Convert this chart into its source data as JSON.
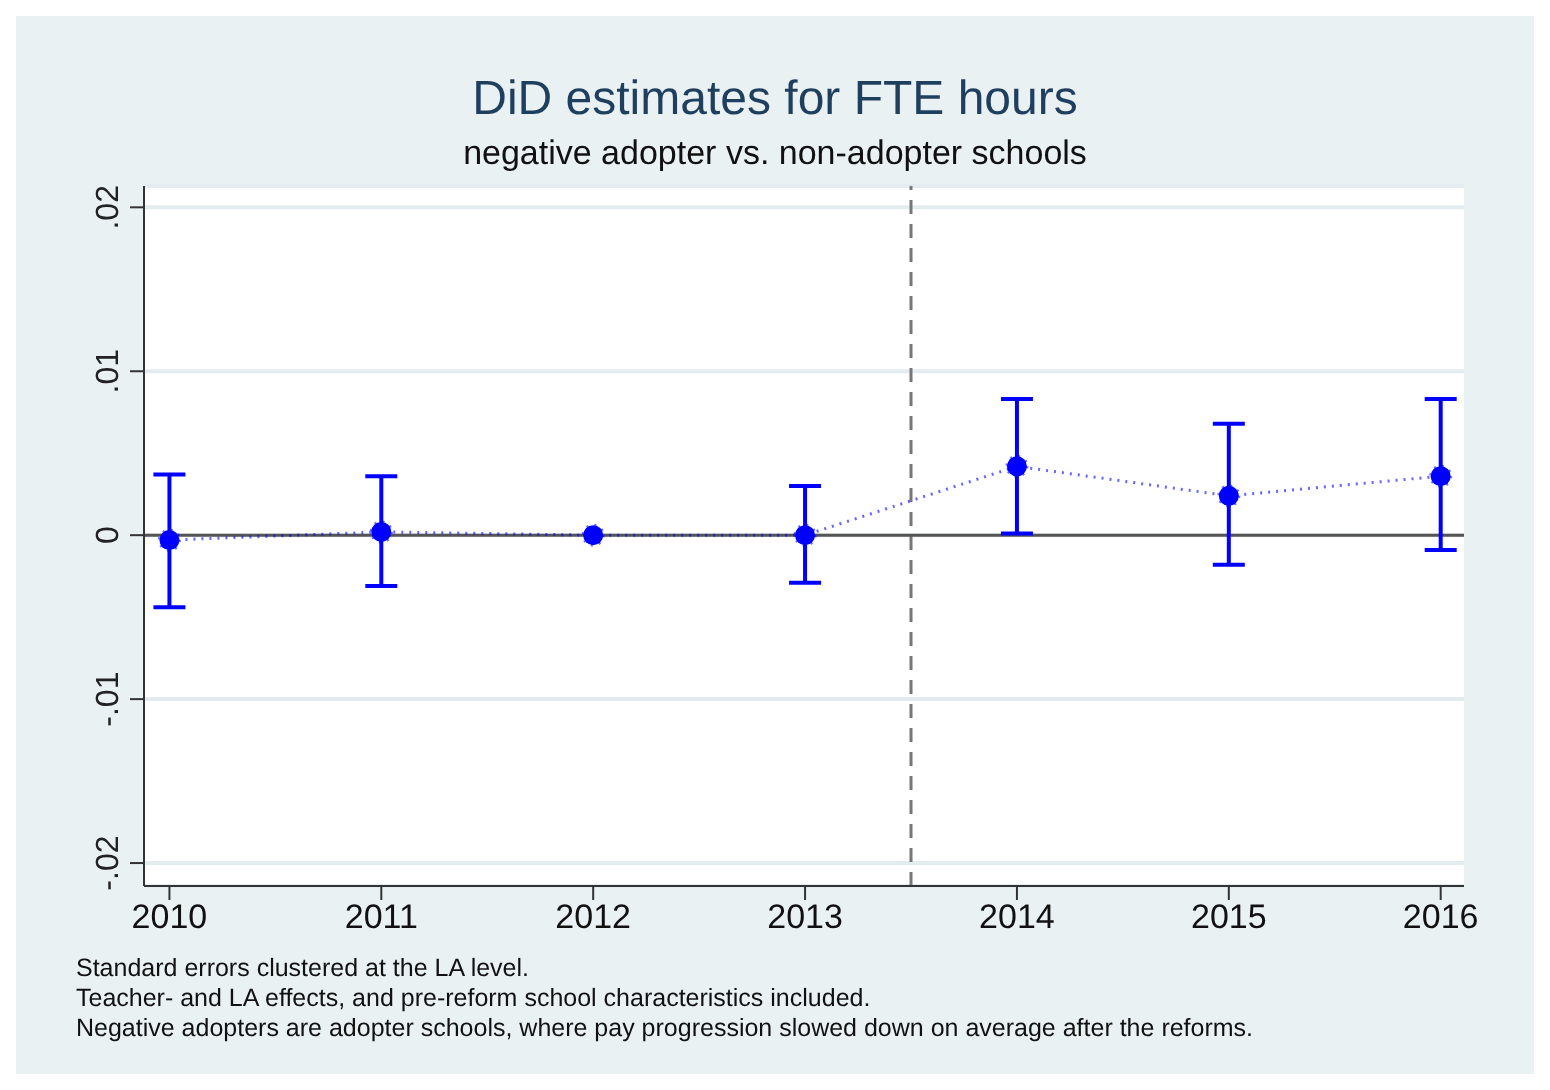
{
  "chart_data": {
    "type": "line",
    "title": "DiD estimates for FTE hours",
    "subtitle": "negative adopter vs. non-adopter schools",
    "x": [
      2010,
      2011,
      2012,
      2013,
      2014,
      2015,
      2016
    ],
    "series": [
      {
        "color": "#0000ff",
        "values": [
          -0.0003,
          0.0002,
          0,
          0,
          0.0042,
          0.0024,
          0.0036
        ],
        "errors": [
          [
            -0.0044,
            0.0037
          ],
          [
            -0.0031,
            0.0036
          ],
          null,
          [
            -0.0029,
            0.003
          ],
          [
            0.0001,
            0.0083
          ],
          [
            -0.0018,
            0.0068
          ],
          [
            -0.0009,
            0.0083
          ]
        ]
      }
    ],
    "xlim": [
      2009.88,
      2016.11
    ],
    "xticks": [
      2010,
      2011,
      2012,
      2013,
      2014,
      2015,
      2016
    ],
    "ylim": [
      -0.0214,
      0.0213
    ],
    "yticks": [
      {
        "value": -0.02,
        "label": "-.02"
      },
      {
        "value": -0.01,
        "label": "-.01"
      },
      {
        "value": 0,
        "label": "0"
      },
      {
        "value": 0.01,
        "label": ".01"
      },
      {
        "value": 0.02,
        "label": ".02"
      }
    ],
    "ref_lines": [
      {
        "axis": "x",
        "value": 2013.5,
        "color": "#777777",
        "line_style": "dashed"
      },
      {
        "axis": "y",
        "value": 0,
        "color": "#555555",
        "line_style": "solid"
      }
    ],
    "grid": "y",
    "marker": "circle",
    "line_style": "dotted",
    "annotations": [
      "Standard errors clustered at the LA level.",
      "Teacher- and LA effects, and pre-reform school characteristics included.",
      "Negative adopters are adopter schools, where pay progression slowed down on average after the reforms."
    ]
  }
}
